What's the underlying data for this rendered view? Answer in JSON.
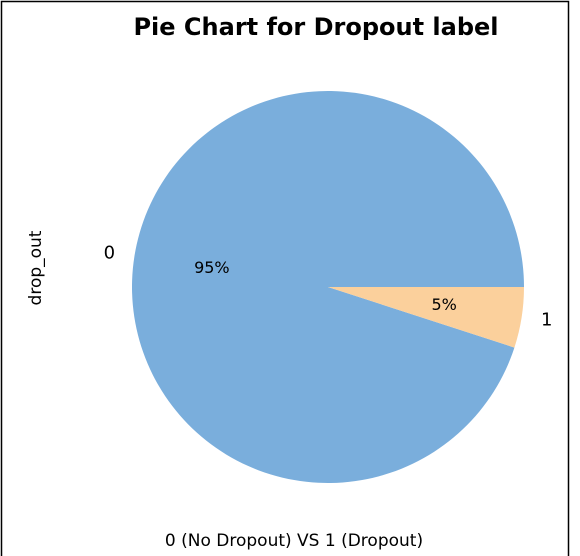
{
  "chart_data": {
    "type": "pie",
    "title": "Pie Chart for Dropout label",
    "xlabel": "0 (No Dropout) VS 1 (Dropout)",
    "ylabel": "drop_out",
    "categories": [
      "0",
      "1"
    ],
    "values": [
      95,
      5
    ],
    "value_labels": [
      "95%",
      "5%"
    ],
    "colors": [
      "#7aaedc",
      "#fbd09c"
    ]
  }
}
